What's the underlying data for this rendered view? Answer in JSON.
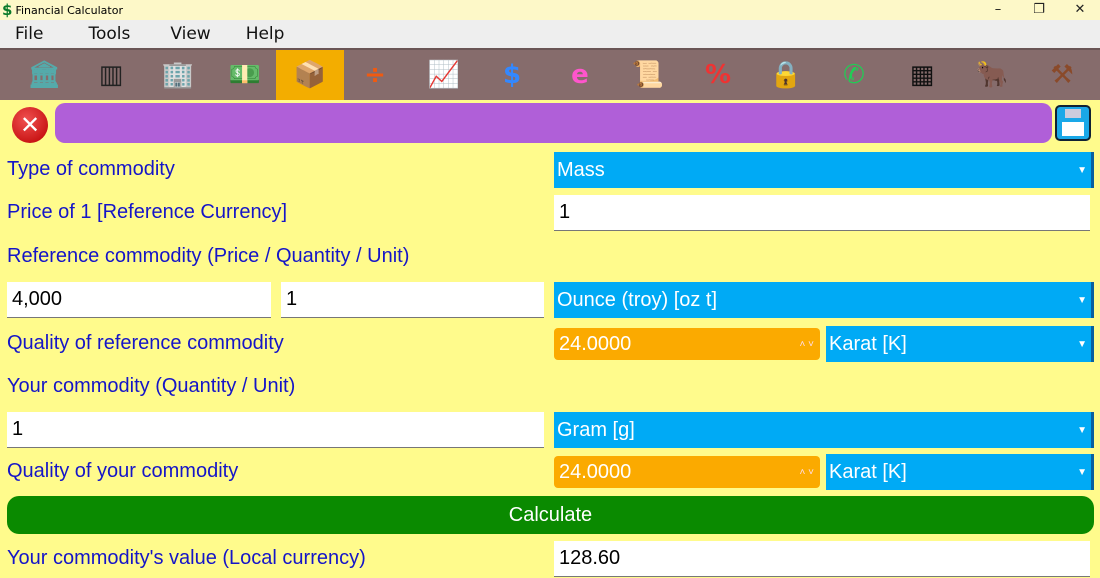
{
  "window": {
    "title": "Financial Calculator",
    "logo": "$"
  },
  "menu": [
    "File",
    "Tools",
    "View",
    "Help"
  ],
  "toolbar": [
    {
      "icon": "bank-icon",
      "glyph": "🏛",
      "color": "#5aa"
    },
    {
      "icon": "barcode-icon",
      "glyph": "▥",
      "color": "#222"
    },
    {
      "icon": "building-icon",
      "glyph": "🏢",
      "color": "#48c"
    },
    {
      "icon": "money-hand-icon",
      "glyph": "💵",
      "color": "#4a4"
    },
    {
      "icon": "box-icon",
      "glyph": "📦",
      "color": "#b8865a",
      "selected": true
    },
    {
      "icon": "divide-icon",
      "glyph": "÷",
      "color": "#f05a10"
    },
    {
      "icon": "growth-chart-icon",
      "glyph": "📈",
      "color": "#2c2"
    },
    {
      "icon": "coins-icon",
      "glyph": "$",
      "color": "#38f"
    },
    {
      "icon": "browser-cloud-icon",
      "glyph": "e",
      "color": "#f5c"
    },
    {
      "icon": "document-icon",
      "glyph": "📜",
      "color": "#eed"
    },
    {
      "icon": "percent-house-icon",
      "glyph": "%",
      "color": "#e33"
    },
    {
      "icon": "padlock-icon",
      "glyph": "🔒",
      "color": "#d9a820"
    },
    {
      "icon": "phone-icon",
      "glyph": "✆",
      "color": "#2c5"
    },
    {
      "icon": "qr-code-icon",
      "glyph": "▦",
      "color": "#111"
    },
    {
      "icon": "bull-icon",
      "glyph": "🐂",
      "color": "#c33"
    },
    {
      "icon": "gavel-icon",
      "glyph": "⚒",
      "color": "#8a4a2a"
    }
  ],
  "colors": {
    "background": "#fffb8c",
    "accent_purple": "#b05fd8",
    "select": "#00aaf5",
    "spin": "#fbaa00",
    "calculate": "#0a8a00",
    "label": "#1515c8"
  },
  "form": {
    "type_label": "Type of commodity",
    "type_value": "Mass",
    "price_label": "Price of 1 [Reference Currency]",
    "price_value": "1",
    "ref_label": "Reference commodity (Price / Quantity / Unit)",
    "ref_price": "4,000",
    "ref_qty": "1",
    "ref_unit": "Ounce (troy) [oz t]",
    "ref_quality_label": "Quality of reference commodity",
    "ref_quality": "24.0000",
    "ref_quality_unit": "Karat [K]",
    "your_label": "Your commodity (Quantity / Unit)",
    "your_qty": "1",
    "your_unit": "Gram [g]",
    "your_quality_label": "Quality of your commodity",
    "your_quality": "24.0000",
    "your_quality_unit": "Karat [K]",
    "calculate": "Calculate",
    "result_label": "Your commodity's value (Local currency)",
    "result_value": "128.60"
  }
}
